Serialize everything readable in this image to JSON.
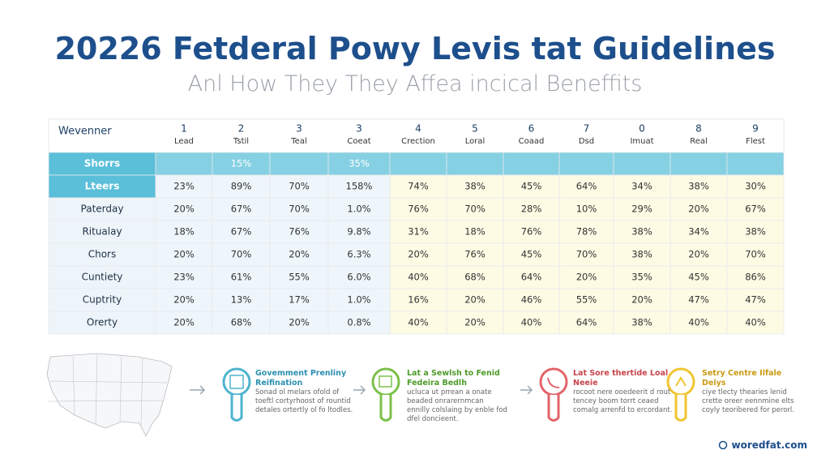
{
  "header": {
    "title": "20226 Fetderal Powy Levis tat Guidelines",
    "subtitle": "Anl How They They Affea incical Beneffits"
  },
  "table": {
    "corner": "Wevenner",
    "columns": [
      {
        "number": "1",
        "label": "Lead"
      },
      {
        "number": "2",
        "label": "Tstil"
      },
      {
        "number": "3",
        "label": "Teal"
      },
      {
        "number": "3",
        "label": "Coeat"
      },
      {
        "number": "4",
        "label": "Crection"
      },
      {
        "number": "5",
        "label": "Loral"
      },
      {
        "number": "6",
        "label": "Coaad"
      },
      {
        "number": "7",
        "label": "Dsd"
      },
      {
        "number": "0",
        "label": "Imuat"
      },
      {
        "number": "8",
        "label": "Real"
      },
      {
        "number": "9",
        "label": "Flest"
      }
    ],
    "rows": [
      {
        "label": "Shorrs",
        "cells": [
          null,
          "15%",
          null,
          "35%",
          null,
          null,
          null,
          null,
          null,
          null,
          null
        ]
      },
      {
        "label": "Lteers",
        "cells": [
          "23%",
          "89%",
          "70%",
          "158%",
          "74%",
          "38%",
          "45%",
          "64%",
          "34%",
          "38%",
          "30%"
        ]
      },
      {
        "label": "Paterday",
        "cells": [
          "20%",
          "67%",
          "70%",
          "1.0%",
          "76%",
          "70%",
          "28%",
          "10%",
          "29%",
          "20%",
          "67%"
        ]
      },
      {
        "label": "Ritualay",
        "cells": [
          "18%",
          "67%",
          "76%",
          "9.8%",
          "31%",
          "18%",
          "76%",
          "78%",
          "38%",
          "34%",
          "38%"
        ]
      },
      {
        "label": "Chors",
        "cells": [
          "20%",
          "70%",
          "20%",
          "6.3%",
          "20%",
          "76%",
          "45%",
          "70%",
          "38%",
          "20%",
          "70%"
        ]
      },
      {
        "label": "Cuntiety",
        "cells": [
          "23%",
          "61%",
          "55%",
          "6.0%",
          "40%",
          "68%",
          "64%",
          "20%",
          "35%",
          "45%",
          "86%"
        ]
      },
      {
        "label": "Cuptrity",
        "cells": [
          "20%",
          "13%",
          "17%",
          "1.0%",
          "16%",
          "20%",
          "46%",
          "55%",
          "20%",
          "47%",
          "47%"
        ]
      },
      {
        "label": "Orerty",
        "cells": [
          "20%",
          "68%",
          "20%",
          "0.8%",
          "40%",
          "20%",
          "40%",
          "64%",
          "38%",
          "40%",
          "40%"
        ]
      }
    ]
  },
  "steps": [
    {
      "title": "Govemment Prenliny Reifination",
      "text": "Sonad ol melars ofold of toeftl cortyrhoost of rountid detales ortertly ol fo ltodles."
    },
    {
      "title": "Lat a Sewlsh to Fenid Fedeira Bedlh",
      "text": "ucluca ut prrean a onate beaded onrarernmcan ennilly colslaing by enble fod dfel doncieent."
    },
    {
      "title": "Lat Sore thertide Loal Neeie",
      "text": "rocoot nere ooedeerit d rout tencey boom torrt ceaed comalg arrenfd to ercordant."
    },
    {
      "title": "Setry Centre Ilfale Deiys",
      "text": "ciye tlecty thearies lenid crette oreer eennmine elts coyly teoribered for perorl."
    }
  ],
  "footer": "woredfat.com"
}
